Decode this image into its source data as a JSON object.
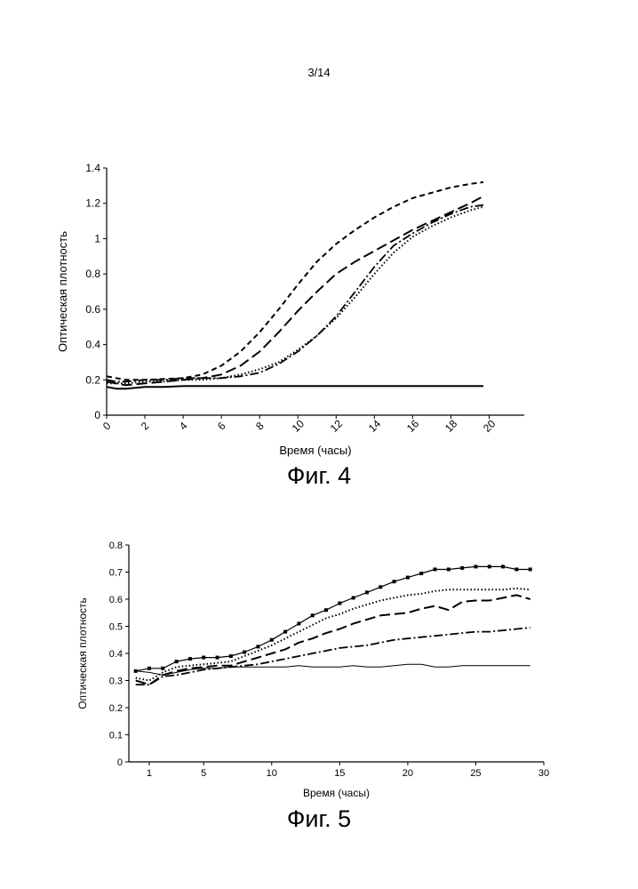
{
  "page": {
    "number": "3/14"
  },
  "chart_data": [
    {
      "type": "line",
      "caption": "Фиг. 4",
      "xlabel": "Время (часы)",
      "ylabel": "Оптическая плотность",
      "xlim": [
        0,
        21
      ],
      "ylim": [
        0,
        1.4
      ],
      "x_ticks": [
        "0",
        "2",
        "4",
        "6",
        "8",
        "10",
        "12",
        "14",
        "16",
        "18",
        "20"
      ],
      "y_ticks": [
        "0",
        "0.2",
        "0.4",
        "0.6",
        "0.8",
        "1",
        "1.2",
        "1.4"
      ],
      "x": [
        0,
        0.5,
        1,
        2,
        3,
        4,
        5,
        6,
        7,
        8,
        9,
        10,
        11,
        12,
        13,
        14,
        15,
        16,
        17,
        18,
        19,
        19.7
      ],
      "series": [
        {
          "name": "solid",
          "style": "solid",
          "values": [
            0.16,
            0.15,
            0.15,
            0.16,
            0.16,
            0.165,
            0.165,
            0.165,
            0.165,
            0.165,
            0.165,
            0.165,
            0.165,
            0.165,
            0.165,
            0.165,
            0.165,
            0.165,
            0.165,
            0.165,
            0.165,
            0.165
          ]
        },
        {
          "name": "short-dash",
          "style": "short-dash",
          "values": [
            0.22,
            0.21,
            0.2,
            0.2,
            0.205,
            0.21,
            0.23,
            0.28,
            0.36,
            0.47,
            0.6,
            0.74,
            0.87,
            0.97,
            1.05,
            1.12,
            1.18,
            1.23,
            1.26,
            1.29,
            1.31,
            1.32
          ]
        },
        {
          "name": "long-dash",
          "style": "long-dash",
          "values": [
            0.19,
            0.18,
            0.17,
            0.18,
            0.19,
            0.2,
            0.21,
            0.23,
            0.28,
            0.36,
            0.47,
            0.59,
            0.7,
            0.8,
            0.87,
            0.93,
            0.99,
            1.05,
            1.1,
            1.15,
            1.2,
            1.24
          ]
        },
        {
          "name": "dot",
          "style": "dot",
          "values": [
            0.18,
            0.18,
            0.18,
            0.19,
            0.19,
            0.2,
            0.2,
            0.21,
            0.23,
            0.26,
            0.3,
            0.37,
            0.45,
            0.55,
            0.67,
            0.8,
            0.92,
            1.01,
            1.07,
            1.12,
            1.16,
            1.18
          ]
        },
        {
          "name": "dash-dot",
          "style": "dash-dot",
          "values": [
            0.2,
            0.19,
            0.19,
            0.2,
            0.2,
            0.21,
            0.21,
            0.21,
            0.22,
            0.24,
            0.29,
            0.36,
            0.45,
            0.56,
            0.7,
            0.84,
            0.96,
            1.03,
            1.09,
            1.14,
            1.18,
            1.19
          ]
        }
      ]
    },
    {
      "type": "line",
      "caption": "Фиг. 5",
      "xlabel": "Время (часы)",
      "ylabel": "Оптическая плотность",
      "xlim": [
        -0.5,
        30
      ],
      "ylim": [
        0,
        0.8
      ],
      "x_ticks": [
        "1",
        "5",
        "10",
        "15",
        "20",
        "25",
        "30"
      ],
      "x_tick_values": [
        1,
        5,
        10,
        15,
        20,
        25,
        30
      ],
      "y_ticks": [
        "0",
        "0.1",
        "0.2",
        "0.3",
        "0.4",
        "0.5",
        "0.6",
        "0.7",
        "0.8"
      ],
      "x": [
        0,
        1,
        2,
        3,
        4,
        5,
        6,
        7,
        8,
        9,
        10,
        11,
        12,
        13,
        14,
        15,
        16,
        17,
        18,
        19,
        20,
        21,
        22,
        23,
        24,
        25,
        26,
        27,
        28,
        29
      ],
      "series": [
        {
          "name": "solid-square-markers",
          "style": "solid-markers",
          "values": [
            0.335,
            0.345,
            0.345,
            0.37,
            0.38,
            0.385,
            0.385,
            0.39,
            0.405,
            0.425,
            0.45,
            0.48,
            0.51,
            0.54,
            0.56,
            0.585,
            0.605,
            0.625,
            0.645,
            0.665,
            0.68,
            0.695,
            0.71,
            0.71,
            0.715,
            0.72,
            0.72,
            0.72,
            0.71,
            0.71
          ]
        },
        {
          "name": "dotted",
          "style": "dot",
          "values": [
            0.31,
            0.3,
            0.33,
            0.35,
            0.355,
            0.36,
            0.365,
            0.37,
            0.39,
            0.41,
            0.43,
            0.455,
            0.48,
            0.505,
            0.53,
            0.545,
            0.565,
            0.58,
            0.595,
            0.605,
            0.615,
            0.62,
            0.63,
            0.635,
            0.635,
            0.635,
            0.635,
            0.635,
            0.64,
            0.635
          ]
        },
        {
          "name": "long-dash",
          "style": "long-dash",
          "values": [
            0.3,
            0.285,
            0.32,
            0.335,
            0.345,
            0.35,
            0.355,
            0.355,
            0.37,
            0.385,
            0.4,
            0.415,
            0.44,
            0.455,
            0.475,
            0.49,
            0.51,
            0.525,
            0.54,
            0.545,
            0.55,
            0.565,
            0.575,
            0.56,
            0.59,
            0.595,
            0.595,
            0.605,
            0.615,
            0.6
          ]
        },
        {
          "name": "dash-dot",
          "style": "dash-dot",
          "values": [
            0.285,
            0.285,
            0.315,
            0.32,
            0.33,
            0.34,
            0.345,
            0.35,
            0.355,
            0.36,
            0.37,
            0.38,
            0.39,
            0.4,
            0.41,
            0.42,
            0.425,
            0.43,
            0.44,
            0.45,
            0.455,
            0.46,
            0.465,
            0.47,
            0.475,
            0.48,
            0.48,
            0.485,
            0.49,
            0.495
          ]
        },
        {
          "name": "thin-solid",
          "style": "thin-solid",
          "values": [
            0.335,
            0.33,
            0.32,
            0.33,
            0.34,
            0.345,
            0.345,
            0.35,
            0.35,
            0.35,
            0.35,
            0.35,
            0.355,
            0.35,
            0.35,
            0.35,
            0.355,
            0.35,
            0.35,
            0.355,
            0.36,
            0.36,
            0.35,
            0.35,
            0.355,
            0.355,
            0.355,
            0.355,
            0.355,
            0.355
          ]
        }
      ]
    }
  ]
}
